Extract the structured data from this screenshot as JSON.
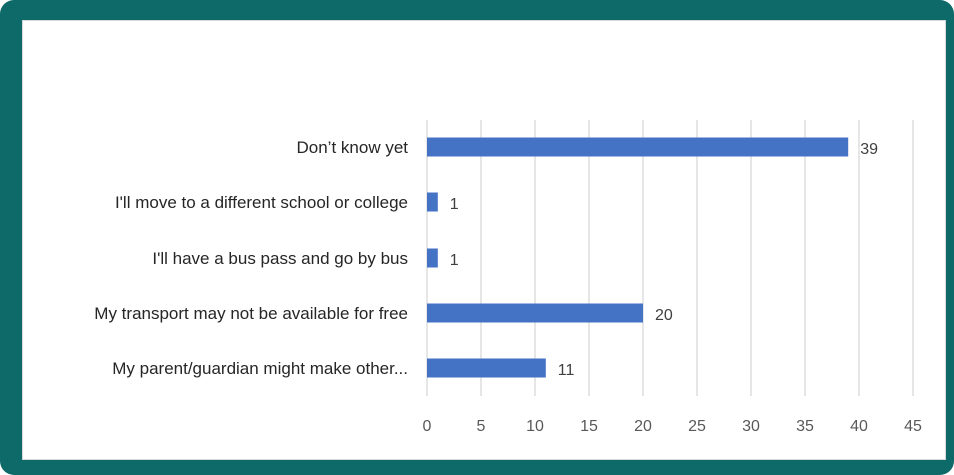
{
  "colors": {
    "frame": "#0e6a68",
    "bar": "#4472c4",
    "grid": "#d9d9d9"
  },
  "chart_data": {
    "type": "bar",
    "orientation": "horizontal",
    "categories": [
      "Don’t know yet",
      "I'll move to a different school or college",
      "I'll have a bus pass and go by bus",
      "My transport may not be available for free",
      "My parent/guardian might make other..."
    ],
    "values": [
      39,
      1,
      1,
      20,
      11
    ],
    "xlim": [
      0,
      45
    ],
    "xticks": [
      0,
      5,
      10,
      15,
      20,
      25,
      30,
      35,
      40,
      45
    ],
    "grid": true,
    "data_labels": true,
    "legend": "none"
  }
}
